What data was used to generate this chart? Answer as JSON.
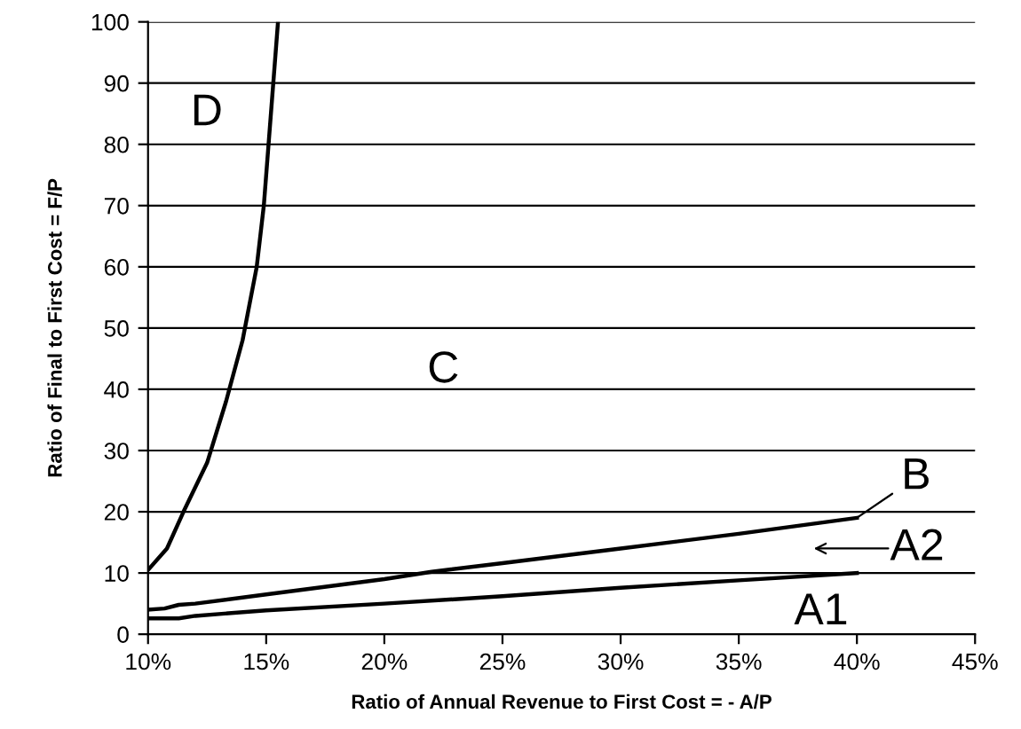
{
  "chart_data": {
    "type": "line",
    "xlabel": "Ratio of Annual Revenue to First Cost = - A/P",
    "ylabel": "Ratio of Final to First Cost = F/P",
    "series": [
      {
        "color": "#000000",
        "x": [
          10,
          10.8,
          11.5,
          12.5,
          13.3,
          14,
          14.6,
          14.9,
          15.1,
          15.3,
          15.5
        ],
        "values": [
          10.5,
          14,
          20,
          28,
          38,
          48,
          60,
          70,
          80,
          90,
          100
        ]
      },
      {
        "color": "#000000",
        "x": [
          10,
          10.7,
          11.3,
          12,
          15,
          20,
          22,
          25,
          30,
          35,
          40
        ],
        "values": [
          4,
          4.2,
          4.8,
          5,
          6.5,
          9,
          10.2,
          11.6,
          14,
          16.4,
          19
        ]
      },
      {
        "color": "#000000",
        "x": [
          10,
          11.3,
          12,
          15,
          20,
          25,
          30,
          35,
          40
        ],
        "values": [
          2.6,
          2.6,
          3,
          3.9,
          5,
          6.2,
          7.6,
          8.8,
          10
        ]
      }
    ],
    "xlim": [
      10,
      45
    ],
    "xticks": [
      {
        "value": 10,
        "label": "10%"
      },
      {
        "value": 15,
        "label": "15%"
      },
      {
        "value": 20,
        "label": "20%"
      },
      {
        "value": 25,
        "label": "25%"
      },
      {
        "value": 30,
        "label": "30%"
      },
      {
        "value": 35,
        "label": "35%"
      },
      {
        "value": 40,
        "label": "40%"
      },
      {
        "value": 45,
        "label": "45%"
      }
    ],
    "ylim": [
      0,
      100
    ],
    "yticks": [
      0,
      10,
      20,
      30,
      40,
      50,
      60,
      70,
      80,
      90,
      100
    ],
    "grid": "y",
    "marker": "none",
    "line_style": "solid",
    "annotations": [
      "D",
      "C",
      {
        "text": "B",
        "x": 40,
        "y": 19
      },
      "A2",
      "A1"
    ]
  }
}
